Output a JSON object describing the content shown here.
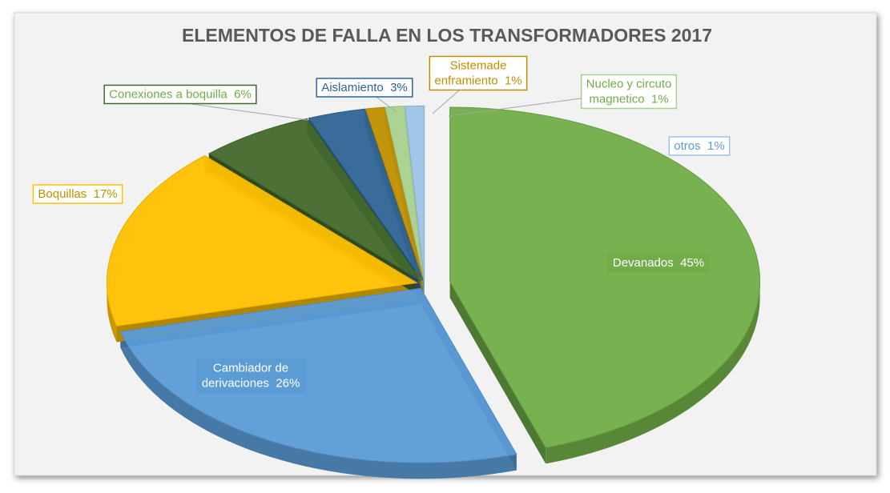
{
  "chart_data": {
    "type": "pie",
    "title": "ELEMENTOS DE FALLA EN LOS TRANSFORMADORES 2017",
    "categories": [
      "Devanados",
      "Cambiador de derivaciones",
      "Boquillas",
      "Conexiones a boquilla",
      "Aislamiento",
      "Sistemade enframiento",
      "Nucleo y circuto magnetico",
      "otros"
    ],
    "values": [
      45,
      26,
      17,
      6,
      3,
      1,
      1,
      1
    ],
    "value_labels": [
      "45%",
      "26%",
      "17%",
      "6%",
      "3%",
      "1%",
      "1%",
      "1%"
    ],
    "colors": [
      "#70ad47",
      "#5b9bd5",
      "#ffc000",
      "#43682b",
      "#2e6496",
      "#bf8f00",
      "#a9d18e",
      "#9dc3e6"
    ]
  }
}
